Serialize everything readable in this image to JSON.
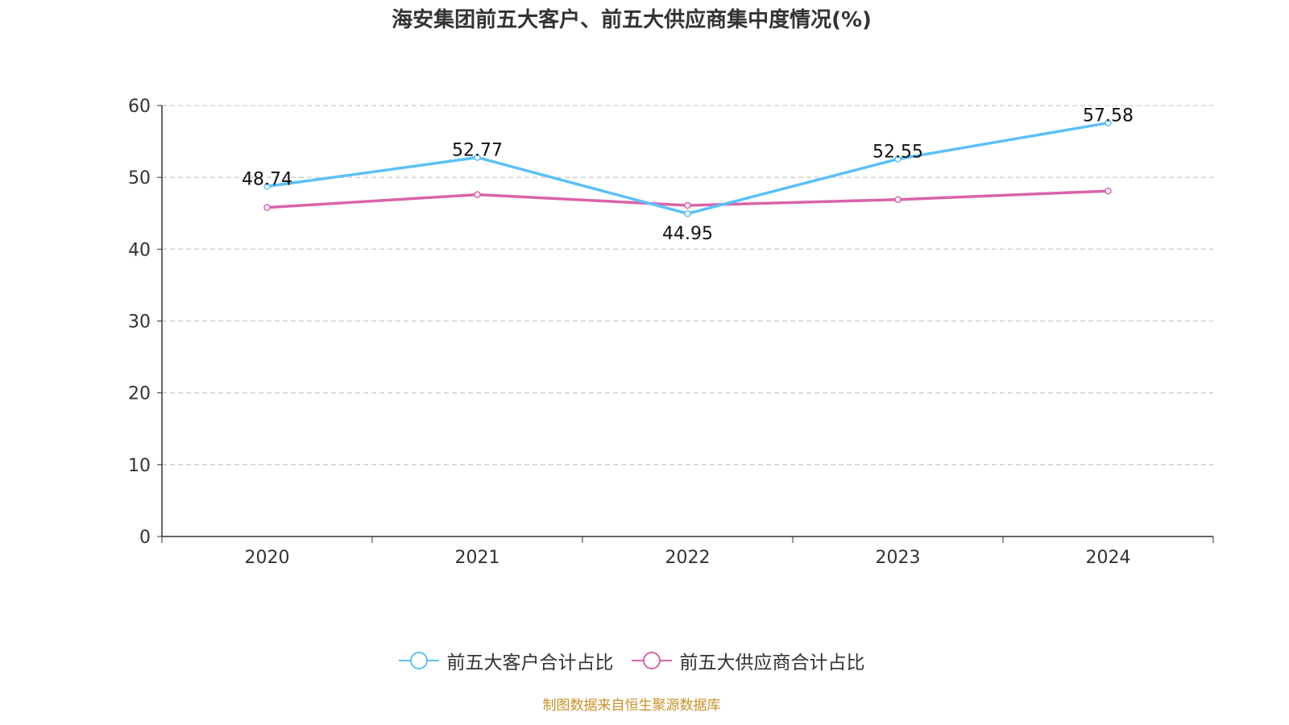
{
  "chart_data": {
    "type": "line",
    "title": "海安集团前五大客户、前五大供应商集中度情况(%)",
    "categories": [
      "2020",
      "2021",
      "2022",
      "2023",
      "2024"
    ],
    "ylim": [
      0,
      60
    ],
    "yticks": [
      0,
      10,
      20,
      30,
      40,
      50,
      60
    ],
    "grid": true,
    "legend_position": "bottom",
    "series": [
      {
        "name": "前五大客户合计占比",
        "color": "#5bc0f8",
        "values": [
          48.74,
          52.77,
          44.95,
          52.55,
          57.58
        ],
        "labels": true
      },
      {
        "name": "前五大供应商合计占比",
        "color": "#d963a8",
        "values": [
          45.8,
          47.6,
          46.1,
          46.9,
          48.1
        ],
        "labels": false
      }
    ]
  },
  "source": "制图数据来自恒生聚源数据库"
}
